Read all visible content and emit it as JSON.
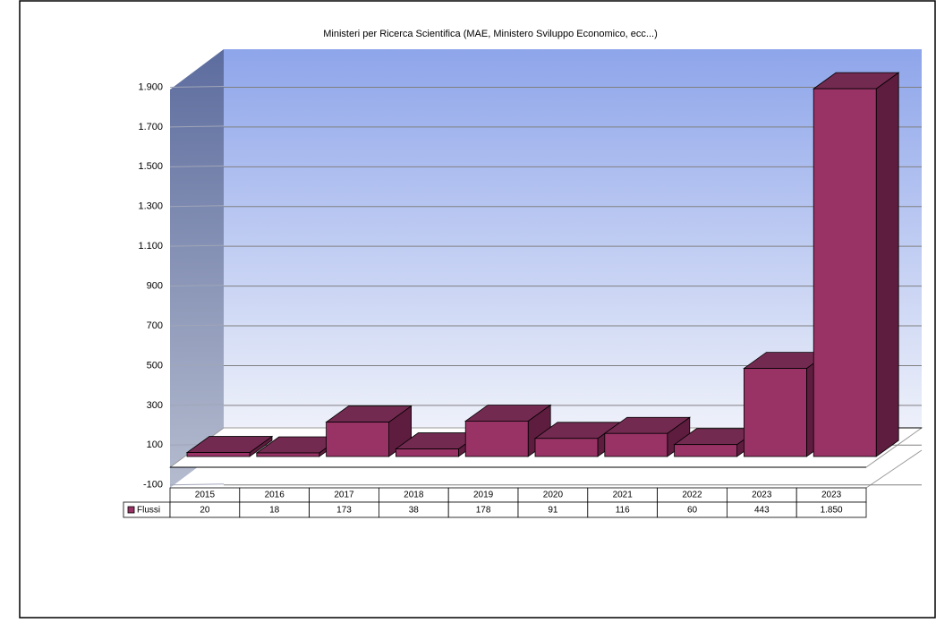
{
  "chart_data": {
    "type": "bar3d",
    "title": "Ministeri per Ricerca Scientifica (MAE, Ministero Sviluppo Economico, ecc...)",
    "categories": [
      "2015",
      "2016",
      "2017",
      "2018",
      "2019",
      "2020",
      "2021",
      "2022",
      "2023",
      "2023"
    ],
    "series": [
      {
        "name": "Flussi",
        "color": "#993366",
        "values": [
          20,
          18,
          173,
          38,
          178,
          91,
          116,
          60,
          443,
          1850
        ],
        "value_labels": [
          "20",
          "18",
          "173",
          "38",
          "178",
          "91",
          "116",
          "60",
          "443",
          "1.850"
        ]
      }
    ],
    "ylim": [
      -100,
      1900
    ],
    "yticks": [
      -100,
      100,
      300,
      500,
      700,
      900,
      {
        "value": 1100,
        "label": "1.100"
      },
      {
        "value": 1300,
        "label": "1.300"
      },
      {
        "value": 1500,
        "label": "1.500"
      },
      {
        "value": 1700,
        "label": "1.700"
      },
      {
        "value": 1900,
        "label": "1.900"
      }
    ],
    "grid": true
  }
}
